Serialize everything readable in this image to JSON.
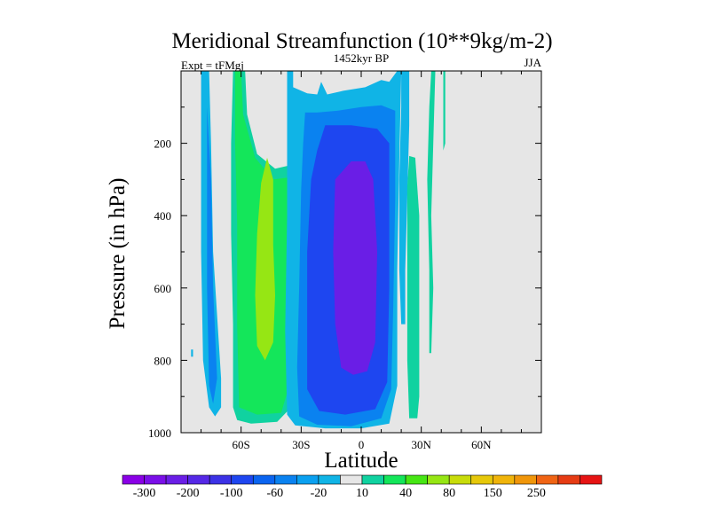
{
  "chart_data": {
    "type": "heatmap",
    "title": "Meridional Streamfunction (10**9kg/m-2)",
    "left_label": "Expt = tFMgj",
    "center_label": "1452kyr BP",
    "right_label": "JJA",
    "xlabel": "Latitude",
    "ylabel": "Pressure (in hPa)",
    "xlim": [
      -90,
      90
    ],
    "ylim": [
      1000,
      0
    ],
    "x_ticks": [
      {
        "value": -60,
        "label": "60S"
      },
      {
        "value": -30,
        "label": "30S"
      },
      {
        "value": 0,
        "label": "0"
      },
      {
        "value": 30,
        "label": "30N"
      },
      {
        "value": 60,
        "label": "60N"
      }
    ],
    "y_ticks": [
      {
        "value": 200,
        "label": "200"
      },
      {
        "value": 400,
        "label": "400"
      },
      {
        "value": 600,
        "label": "600"
      },
      {
        "value": 800,
        "label": "800"
      },
      {
        "value": 1000,
        "label": "1000"
      }
    ],
    "background_color": "#e6e6e6",
    "colorbar": {
      "colors": [
        "#8a00e6",
        "#7a0fe8",
        "#6a1ee6",
        "#5528e6",
        "#3c32e6",
        "#1e46f0",
        "#0a64f0",
        "#0a82f0",
        "#0aa0f0",
        "#10b4e6",
        "#e6e6e6",
        "#10d2a0",
        "#14e65a",
        "#46e614",
        "#96e614",
        "#c8dc0a",
        "#e6c80a",
        "#f0b40a",
        "#f0960a",
        "#f06414",
        "#e63c14",
        "#e61414"
      ],
      "tick_labels": [
        "-300",
        "-200",
        "-100",
        "-60",
        "-20",
        "10",
        "40",
        "80",
        "150",
        "250"
      ],
      "tick_boundaries": [
        1,
        3,
        5,
        7,
        9,
        11,
        13,
        15,
        17,
        19
      ]
    },
    "regions": [
      {
        "level": -20,
        "color": "#10b4e6",
        "points": [
          [
            -80,
            0
          ],
          [
            -76,
            0
          ],
          [
            -75,
            200
          ],
          [
            -74,
            500
          ],
          [
            -70,
            850
          ],
          [
            -70,
            930
          ],
          [
            -73,
            955
          ],
          [
            -76,
            930
          ],
          [
            -79,
            800
          ],
          [
            -80,
            500
          ]
        ]
      },
      {
        "level": -60,
        "color": "#0a82f0",
        "points": [
          [
            -77,
            100
          ],
          [
            -75,
            300
          ],
          [
            -74,
            600
          ],
          [
            -72,
            850
          ],
          [
            -74,
            920
          ],
          [
            -76,
            870
          ],
          [
            -77,
            600
          ]
        ]
      },
      {
        "level": 10,
        "color": "#10d2a0",
        "points": [
          [
            -64,
            0
          ],
          [
            -58,
            0
          ],
          [
            -57,
            120
          ],
          [
            -52,
            230
          ],
          [
            -43,
            270
          ],
          [
            -35,
            260
          ],
          [
            -35,
            420
          ],
          [
            -35,
            720
          ],
          [
            -35,
            930
          ],
          [
            -42,
            970
          ],
          [
            -55,
            975
          ],
          [
            -62,
            965
          ],
          [
            -64,
            930
          ],
          [
            -64,
            700
          ],
          [
            -65,
            450
          ],
          [
            -65,
            200
          ]
        ]
      },
      {
        "level": 40,
        "color": "#14e65a",
        "points": [
          [
            -63,
            0
          ],
          [
            -60,
            0
          ],
          [
            -59,
            120
          ],
          [
            -53,
            240
          ],
          [
            -44,
            300
          ],
          [
            -37,
            295
          ],
          [
            -36,
            560
          ],
          [
            -36,
            870
          ],
          [
            -40,
            945
          ],
          [
            -52,
            950
          ],
          [
            -61,
            930
          ],
          [
            -62,
            700
          ],
          [
            -62,
            420
          ],
          [
            -63,
            200
          ]
        ]
      },
      {
        "level": 80,
        "color": "#96e614",
        "points": [
          [
            -47,
            240
          ],
          [
            -44,
            300
          ],
          [
            -44,
            480
          ],
          [
            -43,
            620
          ],
          [
            -44,
            750
          ],
          [
            -48,
            800
          ],
          [
            -52,
            760
          ],
          [
            -53,
            620
          ],
          [
            -52,
            450
          ],
          [
            -50,
            310
          ]
        ]
      },
      {
        "level": -20,
        "color": "#10b4e6",
        "points": [
          [
            -37,
            0
          ],
          [
            -34,
            0
          ],
          [
            -34,
            45
          ],
          [
            -27,
            62
          ],
          [
            -22,
            65
          ],
          [
            -20,
            30
          ],
          [
            -17,
            65
          ],
          [
            -9,
            55
          ],
          [
            2,
            45
          ],
          [
            10,
            25
          ],
          [
            14,
            30
          ],
          [
            18,
            0
          ],
          [
            20,
            0
          ],
          [
            19,
            250
          ],
          [
            18,
            550
          ],
          [
            18,
            870
          ],
          [
            14,
            975
          ],
          [
            0,
            988
          ],
          [
            -18,
            988
          ],
          [
            -33,
            980
          ],
          [
            -37,
            950
          ],
          [
            -38,
            720
          ],
          [
            -37,
            400
          ],
          [
            -37,
            200
          ]
        ]
      },
      {
        "level": -60,
        "color": "#0a82f0",
        "points": [
          [
            -28,
            115
          ],
          [
            -22,
            115
          ],
          [
            -12,
            110
          ],
          [
            0,
            100
          ],
          [
            10,
            95
          ],
          [
            17,
            110
          ],
          [
            17,
            350
          ],
          [
            16,
            650
          ],
          [
            15,
            880
          ],
          [
            10,
            960
          ],
          [
            -5,
            982
          ],
          [
            -22,
            978
          ],
          [
            -31,
            955
          ],
          [
            -32,
            820
          ],
          [
            -31,
            600
          ],
          [
            -30,
            330
          ],
          [
            -29,
            200
          ]
        ]
      },
      {
        "level": -100,
        "color": "#1e46f0",
        "points": [
          [
            -18,
            150
          ],
          [
            -5,
            150
          ],
          [
            8,
            160
          ],
          [
            14,
            200
          ],
          [
            14,
            600
          ],
          [
            13,
            860
          ],
          [
            7,
            935
          ],
          [
            -8,
            950
          ],
          [
            -21,
            940
          ],
          [
            -27,
            880
          ],
          [
            -27,
            500
          ],
          [
            -25,
            300
          ],
          [
            -22,
            220
          ]
        ]
      },
      {
        "level": -200,
        "color": "#6a1ee6",
        "points": [
          [
            -13,
            300
          ],
          [
            -5,
            250
          ],
          [
            2,
            250
          ],
          [
            6,
            300
          ],
          [
            8,
            500
          ],
          [
            7,
            750
          ],
          [
            3,
            830
          ],
          [
            -4,
            840
          ],
          [
            -10,
            820
          ],
          [
            -13,
            700
          ],
          [
            -14,
            500
          ]
        ]
      },
      {
        "level": -20,
        "color": "#10b4e6",
        "points": [
          [
            20,
            0
          ],
          [
            24,
            0
          ],
          [
            24,
            150
          ],
          [
            23,
            350
          ],
          [
            22,
            550
          ],
          [
            22,
            700
          ],
          [
            20,
            700
          ],
          [
            19,
            550
          ],
          [
            19,
            300
          ],
          [
            20,
            100
          ]
        ]
      },
      {
        "level": 10,
        "color": "#10d2a0",
        "points": [
          [
            24,
            235
          ],
          [
            27,
            240
          ],
          [
            29,
            400
          ],
          [
            29,
            700
          ],
          [
            29,
            900
          ],
          [
            28,
            960
          ],
          [
            24,
            960
          ],
          [
            23,
            800
          ],
          [
            23,
            500
          ],
          [
            23,
            320
          ]
        ]
      },
      {
        "level": 10,
        "color": "#10d2a0",
        "points": [
          [
            35,
            0
          ],
          [
            37,
            0
          ],
          [
            36,
            200
          ],
          [
            35,
            400
          ],
          [
            36,
            600
          ],
          [
            35,
            780
          ],
          [
            34,
            780
          ],
          [
            34,
            550
          ],
          [
            33,
            300
          ],
          [
            34,
            100
          ]
        ]
      },
      {
        "level": 10,
        "color": "#10d2a0",
        "points": [
          [
            41,
            0
          ],
          [
            42,
            0
          ],
          [
            42,
            100
          ],
          [
            42,
            200
          ],
          [
            41,
            220
          ],
          [
            41,
            100
          ]
        ]
      },
      {
        "level": -20,
        "color": "#10b4e6",
        "points": [
          [
            -85,
            770
          ],
          [
            -84,
            770
          ],
          [
            -84,
            790
          ],
          [
            -85,
            790
          ]
        ]
      }
    ]
  }
}
